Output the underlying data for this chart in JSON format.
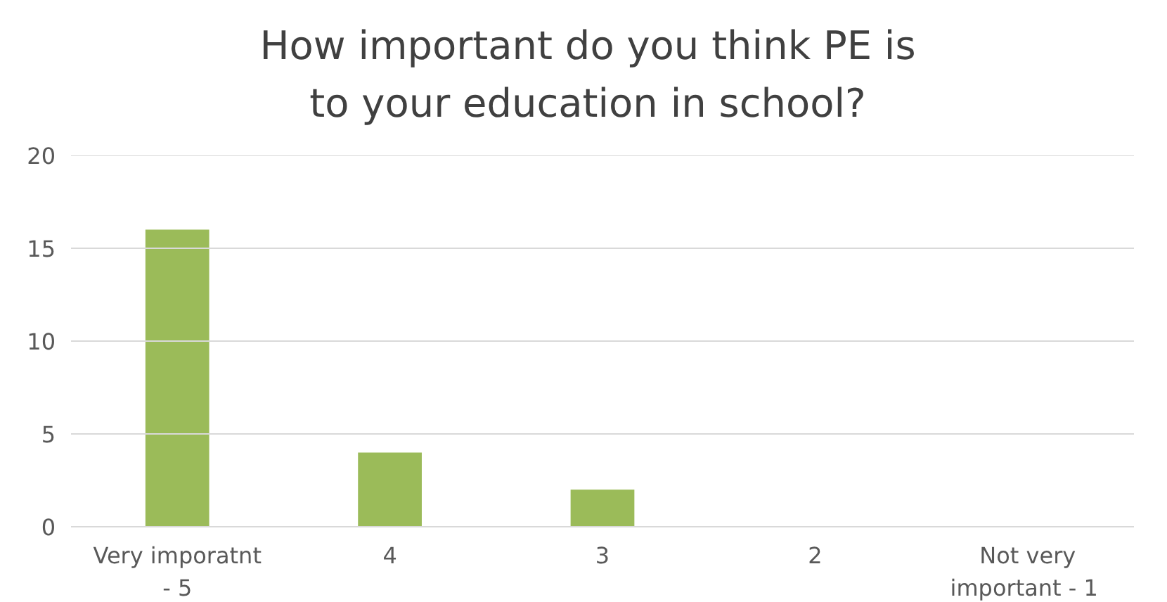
{
  "chart_data": {
    "type": "bar",
    "title": "How important do you think PE is to your education in school?",
    "categories": [
      "Very imporatnt - 5",
      "4",
      "3",
      "2",
      "Not very important  - 1"
    ],
    "values": [
      16,
      4,
      2,
      0,
      0
    ],
    "color": "#9bbb59",
    "ylim": [
      0,
      20
    ],
    "yticks": [
      0,
      5,
      10,
      15,
      20
    ],
    "grid": "y"
  }
}
